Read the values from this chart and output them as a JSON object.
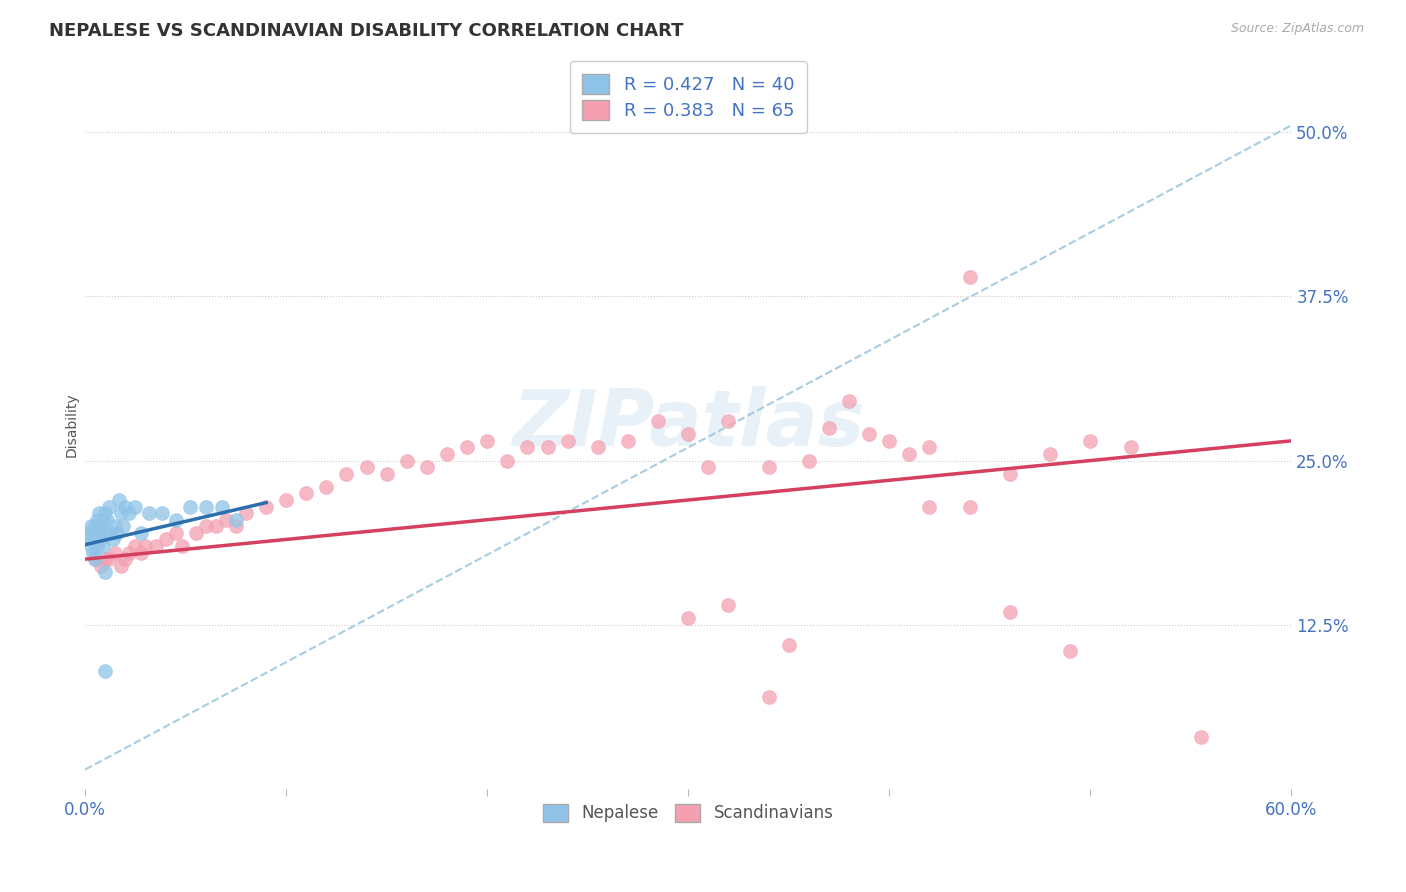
{
  "title": "NEPALESE VS SCANDINAVIAN DISABILITY CORRELATION CHART",
  "source": "Source: ZipAtlas.com",
  "ylabel": "Disability",
  "ytick_labels": [
    "12.5%",
    "25.0%",
    "37.5%",
    "50.0%"
  ],
  "ytick_values": [
    0.125,
    0.25,
    0.375,
    0.5
  ],
  "xmin": 0.0,
  "xmax": 0.6,
  "ymin": 0.0,
  "ymax": 0.555,
  "legend_r1": "R = 0.427",
  "legend_n1": "N = 40",
  "legend_r2": "R = 0.383",
  "legend_n2": "N = 65",
  "blue_color": "#8fc4e8",
  "pink_color": "#f4a0b0",
  "blue_line_color": "#2c6fad",
  "pink_line_color": "#d64060",
  "dashed_line_color": "#a8cce0",
  "nepalese_x": [
    0.001,
    0.002,
    0.003,
    0.003,
    0.004,
    0.004,
    0.005,
    0.005,
    0.006,
    0.006,
    0.007,
    0.007,
    0.008,
    0.008,
    0.009,
    0.009,
    0.01,
    0.01,
    0.011,
    0.012,
    0.013,
    0.014,
    0.015,
    0.016,
    0.017,
    0.018,
    0.019,
    0.02,
    0.022,
    0.025,
    0.028,
    0.032,
    0.038,
    0.045,
    0.052,
    0.06,
    0.068,
    0.075,
    0.01,
    0.01
  ],
  "nepalese_y": [
    0.195,
    0.19,
    0.185,
    0.2,
    0.18,
    0.195,
    0.175,
    0.2,
    0.185,
    0.205,
    0.195,
    0.21,
    0.2,
    0.19,
    0.185,
    0.205,
    0.195,
    0.21,
    0.205,
    0.215,
    0.195,
    0.19,
    0.2,
    0.195,
    0.22,
    0.21,
    0.2,
    0.215,
    0.21,
    0.215,
    0.195,
    0.21,
    0.21,
    0.205,
    0.215,
    0.215,
    0.215,
    0.205,
    0.165,
    0.09
  ],
  "scandinavian_x": [
    0.005,
    0.008,
    0.01,
    0.012,
    0.015,
    0.018,
    0.02,
    0.022,
    0.025,
    0.028,
    0.03,
    0.035,
    0.04,
    0.045,
    0.048,
    0.055,
    0.06,
    0.065,
    0.07,
    0.075,
    0.08,
    0.09,
    0.1,
    0.11,
    0.12,
    0.13,
    0.14,
    0.15,
    0.16,
    0.17,
    0.18,
    0.19,
    0.2,
    0.21,
    0.22,
    0.23,
    0.24,
    0.255,
    0.27,
    0.285,
    0.3,
    0.31,
    0.32,
    0.34,
    0.36,
    0.37,
    0.39,
    0.4,
    0.41,
    0.42,
    0.44,
    0.46,
    0.48,
    0.5,
    0.52,
    0.3,
    0.32,
    0.35,
    0.44,
    0.49,
    0.34,
    0.38,
    0.42,
    0.46,
    0.555
  ],
  "scandinavian_y": [
    0.175,
    0.17,
    0.175,
    0.175,
    0.18,
    0.17,
    0.175,
    0.18,
    0.185,
    0.18,
    0.185,
    0.185,
    0.19,
    0.195,
    0.185,
    0.195,
    0.2,
    0.2,
    0.205,
    0.2,
    0.21,
    0.215,
    0.22,
    0.225,
    0.23,
    0.24,
    0.245,
    0.24,
    0.25,
    0.245,
    0.255,
    0.26,
    0.265,
    0.25,
    0.26,
    0.26,
    0.265,
    0.26,
    0.265,
    0.28,
    0.27,
    0.245,
    0.28,
    0.245,
    0.25,
    0.275,
    0.27,
    0.265,
    0.255,
    0.26,
    0.215,
    0.24,
    0.255,
    0.265,
    0.26,
    0.13,
    0.14,
    0.11,
    0.39,
    0.105,
    0.07,
    0.295,
    0.215,
    0.135,
    0.04
  ],
  "nep_line_x0": 0.0,
  "nep_line_x1": 0.09,
  "nep_line_y0": 0.186,
  "nep_line_y1": 0.218,
  "scand_line_x0": 0.0,
  "scand_line_x1": 0.6,
  "scand_line_y0": 0.175,
  "scand_line_y1": 0.265,
  "dash_line_x0": 0.0,
  "dash_line_x1": 0.6,
  "dash_line_y0": 0.015,
  "dash_line_y1": 0.505
}
